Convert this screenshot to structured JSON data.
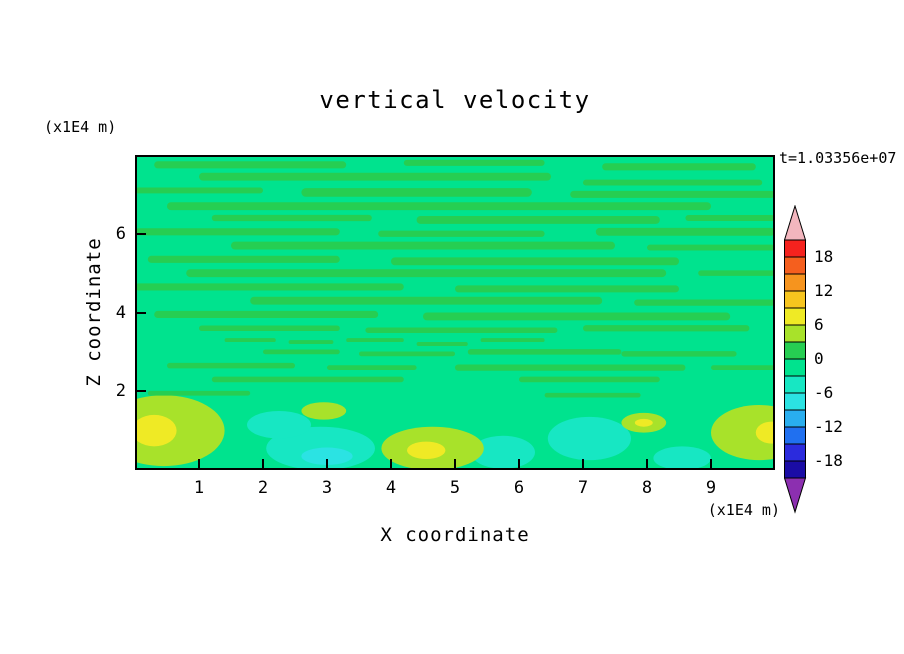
{
  "title": "vertical velocity",
  "time_label": "t=1.03356e+07",
  "axes": {
    "x_label": "X coordinate",
    "x_unit": "(x1E4 m)",
    "y_label": "Z coordinate",
    "y_unit": "(x1E4 m)",
    "x_ticks": [
      "1",
      "2",
      "3",
      "4",
      "5",
      "6",
      "7",
      "8",
      "9"
    ],
    "y_ticks": [
      "6",
      "4",
      "2"
    ]
  },
  "colorbar": {
    "labels": [
      "18",
      "12",
      "6",
      "0",
      "-6",
      "-12",
      "-18"
    ],
    "over_color": "#f3b6be",
    "under_color": "#8c2fb0",
    "segment_colors": [
      "#f5221e",
      "#f55f1e",
      "#f6941e",
      "#f7c51e",
      "#efea25",
      "#a8e22a",
      "#26ce52",
      "#00e38e",
      "#17e7c3",
      "#2be3e3",
      "#29aeef",
      "#2070f0",
      "#2b2bdd",
      "#1a0ca5"
    ]
  },
  "chart_data": {
    "type": "heatmap",
    "title": "vertical velocity",
    "xlabel": "X coordinate",
    "ylabel": "Z coordinate",
    "x_range": [
      0,
      10
    ],
    "z_range": [
      0,
      8
    ],
    "x_tick_values": [
      1,
      2,
      3,
      4,
      5,
      6,
      7,
      8,
      9
    ],
    "z_tick_values": [
      6,
      4,
      2
    ],
    "contour_levels": [
      -21,
      -18,
      -15,
      -12,
      -9,
      -6,
      -3,
      0,
      3,
      6,
      9,
      12,
      15,
      18,
      21
    ],
    "background_band": 7,
    "streak_band": 6,
    "streaks": [
      {
        "x": 0.3,
        "z": 7.75,
        "w": 3.0,
        "h": 0.18
      },
      {
        "x": 4.2,
        "z": 7.8,
        "w": 2.2,
        "h": 0.15
      },
      {
        "x": 7.3,
        "z": 7.7,
        "w": 2.4,
        "h": 0.18
      },
      {
        "x": 1.0,
        "z": 7.45,
        "w": 5.5,
        "h": 0.2
      },
      {
        "x": 7.0,
        "z": 7.3,
        "w": 2.8,
        "h": 0.15
      },
      {
        "x": 0.0,
        "z": 7.1,
        "w": 2.0,
        "h": 0.15
      },
      {
        "x": 2.6,
        "z": 7.05,
        "w": 3.6,
        "h": 0.22
      },
      {
        "x": 6.8,
        "z": 7.0,
        "w": 3.2,
        "h": 0.18
      },
      {
        "x": 0.5,
        "z": 6.7,
        "w": 8.5,
        "h": 0.2
      },
      {
        "x": 1.2,
        "z": 6.4,
        "w": 2.5,
        "h": 0.16
      },
      {
        "x": 4.4,
        "z": 6.35,
        "w": 3.8,
        "h": 0.2
      },
      {
        "x": 8.6,
        "z": 6.4,
        "w": 1.4,
        "h": 0.15
      },
      {
        "x": 0.0,
        "z": 6.05,
        "w": 3.2,
        "h": 0.18
      },
      {
        "x": 3.8,
        "z": 6.0,
        "w": 2.6,
        "h": 0.16
      },
      {
        "x": 7.2,
        "z": 6.05,
        "w": 2.8,
        "h": 0.2
      },
      {
        "x": 1.5,
        "z": 5.7,
        "w": 6.0,
        "h": 0.2
      },
      {
        "x": 8.0,
        "z": 5.65,
        "w": 2.0,
        "h": 0.15
      },
      {
        "x": 0.2,
        "z": 5.35,
        "w": 3.0,
        "h": 0.18
      },
      {
        "x": 4.0,
        "z": 5.3,
        "w": 4.5,
        "h": 0.2
      },
      {
        "x": 0.8,
        "z": 5.0,
        "w": 7.5,
        "h": 0.2
      },
      {
        "x": 8.8,
        "z": 5.0,
        "w": 1.2,
        "h": 0.14
      },
      {
        "x": 0.0,
        "z": 4.65,
        "w": 4.2,
        "h": 0.18
      },
      {
        "x": 5.0,
        "z": 4.6,
        "w": 3.5,
        "h": 0.18
      },
      {
        "x": 1.8,
        "z": 4.3,
        "w": 5.5,
        "h": 0.2
      },
      {
        "x": 7.8,
        "z": 4.25,
        "w": 2.2,
        "h": 0.16
      },
      {
        "x": 0.3,
        "z": 3.95,
        "w": 3.5,
        "h": 0.18
      },
      {
        "x": 4.5,
        "z": 3.9,
        "w": 4.8,
        "h": 0.2
      },
      {
        "x": 1.0,
        "z": 3.6,
        "w": 2.2,
        "h": 0.14
      },
      {
        "x": 3.6,
        "z": 3.55,
        "w": 3.0,
        "h": 0.14
      },
      {
        "x": 7.0,
        "z": 3.6,
        "w": 2.6,
        "h": 0.16
      },
      {
        "x": 1.4,
        "z": 3.3,
        "w": 0.8,
        "h": 0.1
      },
      {
        "x": 2.4,
        "z": 3.25,
        "w": 0.7,
        "h": 0.1
      },
      {
        "x": 3.3,
        "z": 3.3,
        "w": 0.9,
        "h": 0.1
      },
      {
        "x": 4.4,
        "z": 3.2,
        "w": 0.8,
        "h": 0.1
      },
      {
        "x": 5.4,
        "z": 3.3,
        "w": 1.0,
        "h": 0.1
      },
      {
        "x": 2.0,
        "z": 3.0,
        "w": 1.2,
        "h": 0.12
      },
      {
        "x": 3.5,
        "z": 2.95,
        "w": 1.5,
        "h": 0.12
      },
      {
        "x": 5.2,
        "z": 3.0,
        "w": 2.4,
        "h": 0.14
      },
      {
        "x": 7.6,
        "z": 2.95,
        "w": 1.8,
        "h": 0.14
      },
      {
        "x": 0.5,
        "z": 2.65,
        "w": 2.0,
        "h": 0.14
      },
      {
        "x": 3.0,
        "z": 2.6,
        "w": 1.4,
        "h": 0.12
      },
      {
        "x": 5.0,
        "z": 2.6,
        "w": 3.6,
        "h": 0.16
      },
      {
        "x": 9.0,
        "z": 2.6,
        "w": 1.0,
        "h": 0.12
      },
      {
        "x": 1.2,
        "z": 2.3,
        "w": 3.0,
        "h": 0.14
      },
      {
        "x": 6.0,
        "z": 2.3,
        "w": 2.2,
        "h": 0.14
      },
      {
        "x": 0.2,
        "z": 1.95,
        "w": 1.6,
        "h": 0.12
      },
      {
        "x": 6.4,
        "z": 1.9,
        "w": 1.5,
        "h": 0.12
      }
    ],
    "blobs": [
      {
        "x": 2.9,
        "z": 0.55,
        "rx": 0.85,
        "rz": 0.55,
        "band": 8
      },
      {
        "x": 2.25,
        "z": 1.15,
        "rx": 0.5,
        "rz": 0.35,
        "band": 8
      },
      {
        "x": 5.75,
        "z": 0.45,
        "rx": 0.5,
        "rz": 0.42,
        "band": 8
      },
      {
        "x": 7.1,
        "z": 0.8,
        "rx": 0.65,
        "rz": 0.55,
        "band": 8
      },
      {
        "x": 8.55,
        "z": 0.3,
        "rx": 0.45,
        "rz": 0.3,
        "band": 8
      },
      {
        "x": 3.0,
        "z": 0.35,
        "rx": 0.4,
        "rz": 0.22,
        "band": 9
      },
      {
        "x": 0.45,
        "z": 1.0,
        "rx": 0.95,
        "rz": 0.9,
        "band": 5
      },
      {
        "x": 4.65,
        "z": 0.55,
        "rx": 0.8,
        "rz": 0.55,
        "band": 5
      },
      {
        "x": 2.95,
        "z": 1.5,
        "rx": 0.35,
        "rz": 0.22,
        "band": 5
      },
      {
        "x": 9.75,
        "z": 0.95,
        "rx": 0.75,
        "rz": 0.7,
        "band": 5
      },
      {
        "x": 7.95,
        "z": 1.2,
        "rx": 0.35,
        "rz": 0.25,
        "band": 5
      },
      {
        "x": 0.3,
        "z": 1.0,
        "rx": 0.35,
        "rz": 0.4,
        "band": 4
      },
      {
        "x": 4.55,
        "z": 0.5,
        "rx": 0.3,
        "rz": 0.22,
        "band": 4
      },
      {
        "x": 9.95,
        "z": 0.95,
        "rx": 0.25,
        "rz": 0.28,
        "band": 4
      },
      {
        "x": 7.95,
        "z": 1.2,
        "rx": 0.14,
        "rz": 0.1,
        "band": 4
      }
    ]
  }
}
